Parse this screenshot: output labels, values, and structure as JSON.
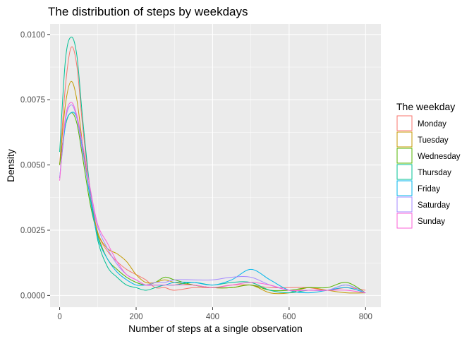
{
  "chart_data": {
    "type": "line",
    "title": "The distribution of steps by weekdays",
    "xlabel": "Number of steps at a single observation",
    "ylabel": "Density",
    "xlim": [
      -25,
      840
    ],
    "ylim": [
      -0.00045,
      0.0104
    ],
    "x_ticks": [
      0,
      200,
      400,
      600,
      800
    ],
    "x_tick_labels": [
      "0",
      "200",
      "400",
      "600",
      "800"
    ],
    "y_ticks": [
      0,
      0.0025,
      0.005,
      0.0075,
      0.01
    ],
    "y_tick_labels": [
      "0.0000",
      "0.0025",
      "0.0050",
      "0.0075",
      "0.0100"
    ],
    "grid": true,
    "legend": {
      "title": "The weekday",
      "position": "right"
    },
    "series": [
      {
        "name": "Monday",
        "color": "#F8766D",
        "x": [
          0,
          15,
          30,
          45,
          60,
          80,
          100,
          125,
          150,
          175,
          200,
          225,
          250,
          275,
          300,
          350,
          400,
          450,
          500,
          550,
          600,
          650,
          700,
          750,
          800
        ],
        "y": [
          0.005,
          0.008,
          0.0095,
          0.0088,
          0.0065,
          0.004,
          0.0024,
          0.0017,
          0.0013,
          0.001,
          0.0008,
          0.0006,
          0.0003,
          0.0003,
          0.0002,
          0.0003,
          0.0003,
          0.0004,
          0.0004,
          0.0003,
          0.0003,
          0.0003,
          0.0002,
          0.0003,
          0.0002
        ]
      },
      {
        "name": "Tuesday",
        "color": "#C49A00",
        "x": [
          0,
          15,
          30,
          45,
          60,
          80,
          100,
          125,
          150,
          175,
          200,
          225,
          250,
          275,
          300,
          350,
          400,
          450,
          500,
          550,
          600,
          650,
          700,
          750,
          800
        ],
        "y": [
          0.005,
          0.0073,
          0.0082,
          0.0075,
          0.0058,
          0.0038,
          0.0024,
          0.0018,
          0.0016,
          0.0013,
          0.0008,
          0.0005,
          0.0005,
          0.0006,
          0.0005,
          0.0004,
          0.0003,
          0.0003,
          0.0004,
          0.0001,
          0.0001,
          0.0003,
          0.0002,
          0.0001,
          0.0001
        ]
      },
      {
        "name": "Wednesday",
        "color": "#53B400",
        "x": [
          0,
          15,
          30,
          45,
          60,
          80,
          100,
          125,
          150,
          175,
          200,
          225,
          250,
          275,
          300,
          350,
          400,
          450,
          500,
          550,
          600,
          650,
          700,
          750,
          800
        ],
        "y": [
          0.005,
          0.0065,
          0.007,
          0.0066,
          0.0053,
          0.0035,
          0.0023,
          0.0014,
          0.001,
          0.0007,
          0.0005,
          0.0004,
          0.0005,
          0.0007,
          0.0006,
          0.0004,
          0.0003,
          0.0003,
          0.0004,
          0.0002,
          0.0002,
          0.0003,
          0.0003,
          0.0005,
          0.0001
        ]
      },
      {
        "name": "Thursday",
        "color": "#00C094",
        "x": [
          0,
          15,
          30,
          45,
          60,
          80,
          100,
          125,
          150,
          175,
          200,
          225,
          250,
          275,
          300,
          350,
          400,
          450,
          500,
          550,
          600,
          650,
          700,
          750,
          800
        ],
        "y": [
          0.0055,
          0.009,
          0.0099,
          0.0092,
          0.0068,
          0.004,
          0.0021,
          0.0011,
          0.0007,
          0.0004,
          0.0003,
          0.0002,
          0.0003,
          0.0004,
          0.0004,
          0.0005,
          0.0004,
          0.0005,
          0.0005,
          0.0002,
          0.0001,
          0.0002,
          0.0002,
          0.0004,
          0.0001
        ]
      },
      {
        "name": "Friday",
        "color": "#00B6EB",
        "x": [
          0,
          15,
          30,
          45,
          60,
          80,
          100,
          125,
          150,
          175,
          200,
          225,
          250,
          275,
          300,
          350,
          400,
          450,
          500,
          550,
          600,
          650,
          700,
          750,
          800
        ],
        "y": [
          0.0045,
          0.0065,
          0.007,
          0.0068,
          0.0056,
          0.0037,
          0.0022,
          0.0014,
          0.0009,
          0.0006,
          0.0004,
          0.0004,
          0.0004,
          0.0004,
          0.0005,
          0.0005,
          0.0004,
          0.0006,
          0.001,
          0.0006,
          0.0002,
          0.0001,
          0.0002,
          0.0003,
          0.0001
        ]
      },
      {
        "name": "Saturday",
        "color": "#A58AFF",
        "x": [
          0,
          15,
          30,
          45,
          60,
          80,
          100,
          125,
          150,
          175,
          200,
          225,
          250,
          275,
          300,
          350,
          400,
          450,
          500,
          550,
          600,
          650,
          700,
          750,
          800
        ],
        "y": [
          0.0045,
          0.0067,
          0.0073,
          0.0068,
          0.0055,
          0.0039,
          0.0026,
          0.0018,
          0.0012,
          0.0008,
          0.0006,
          0.0004,
          0.0005,
          0.0005,
          0.0006,
          0.0006,
          0.0006,
          0.0007,
          0.0007,
          0.0004,
          0.0002,
          0.0002,
          0.0002,
          0.0004,
          0.0001
        ]
      },
      {
        "name": "Sunday",
        "color": "#FB61D7",
        "x": [
          0,
          15,
          30,
          45,
          60,
          80,
          100,
          125,
          150,
          175,
          200,
          225,
          250,
          275,
          300,
          350,
          400,
          450,
          500,
          550,
          600,
          650,
          700,
          750,
          800
        ],
        "y": [
          0.0044,
          0.0068,
          0.0074,
          0.0069,
          0.0058,
          0.0041,
          0.0027,
          0.002,
          0.0013,
          0.0008,
          0.0006,
          0.0004,
          0.0004,
          0.0004,
          0.0004,
          0.0004,
          0.0003,
          0.0004,
          0.0005,
          0.0004,
          0.0002,
          0.0002,
          0.0002,
          0.0002,
          0.0001
        ]
      }
    ]
  }
}
